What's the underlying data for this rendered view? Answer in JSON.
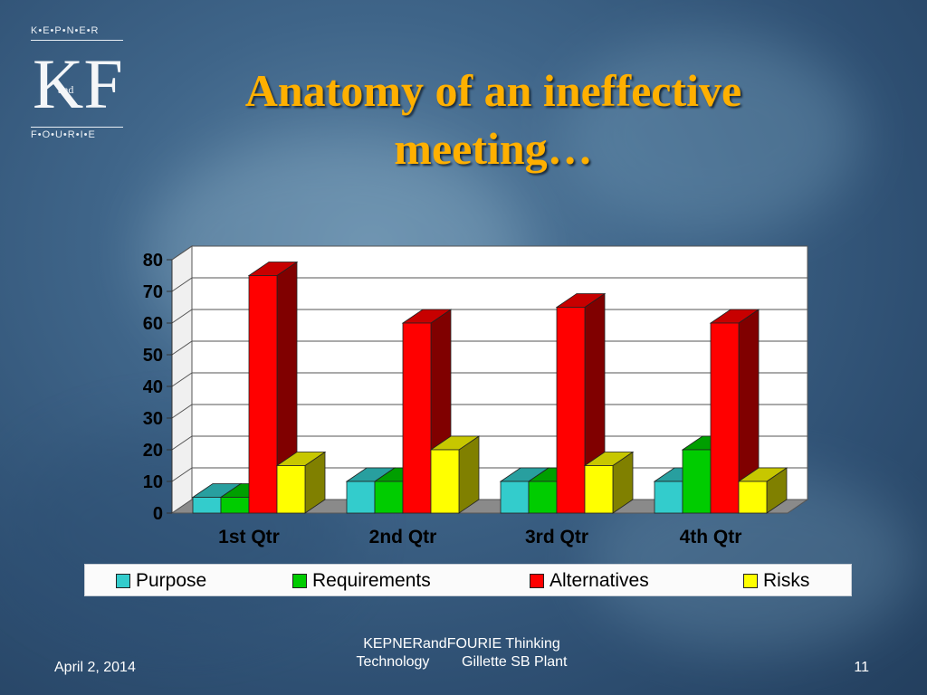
{
  "logo": {
    "top_text": "K•E•P•N•E•R",
    "letters": "KF",
    "and_text": "and",
    "bottom_text": "F•O•U•R•I•E"
  },
  "slide": {
    "title_line1": "Anatomy of an ineffective",
    "title_line2": "meeting…"
  },
  "chart_data": {
    "type": "bar",
    "title": "",
    "xlabel": "",
    "ylabel": "",
    "categories": [
      "1st Qtr",
      "2nd Qtr",
      "3rd Qtr",
      "4th Qtr"
    ],
    "ylim": [
      0,
      80
    ],
    "yticks": [
      0,
      10,
      20,
      30,
      40,
      50,
      60,
      70,
      80
    ],
    "grid": true,
    "legend_position": "bottom",
    "series": [
      {
        "name": "Purpose",
        "values": [
          5,
          10,
          10,
          10
        ],
        "color": "#33cccc"
      },
      {
        "name": "Requirements",
        "values": [
          5,
          10,
          10,
          20
        ],
        "color": "#00cc00"
      },
      {
        "name": "Alternatives",
        "values": [
          75,
          60,
          65,
          60
        ],
        "color": "#ff0000"
      },
      {
        "name": "Risks",
        "values": [
          15,
          20,
          15,
          10
        ],
        "color": "#ffff00"
      }
    ]
  },
  "footer": {
    "date": "April 2, 2014",
    "center_line1": "KEPNERandFOURIE Thinking",
    "center_line2": "Technology        Gillette SB Plant",
    "page": "11"
  }
}
